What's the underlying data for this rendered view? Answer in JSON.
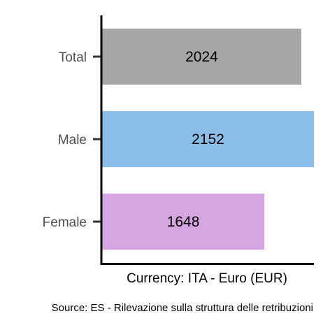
{
  "chart_data": {
    "type": "bar",
    "orientation": "horizontal",
    "categories": [
      "Total",
      "Male",
      "Female"
    ],
    "values": [
      2024,
      2152,
      1648
    ],
    "colors": [
      "#a6a6a6",
      "#8bbde9",
      "#d5a6e1"
    ],
    "xlabel": "Currency: ITA - Euro (EUR)",
    "ylabel": "",
    "xlim": [
      0,
      2152
    ],
    "grid": false,
    "legend": "none",
    "caption": "Source:  ES - Rilevazione sulla struttura delle retribuzioni"
  }
}
